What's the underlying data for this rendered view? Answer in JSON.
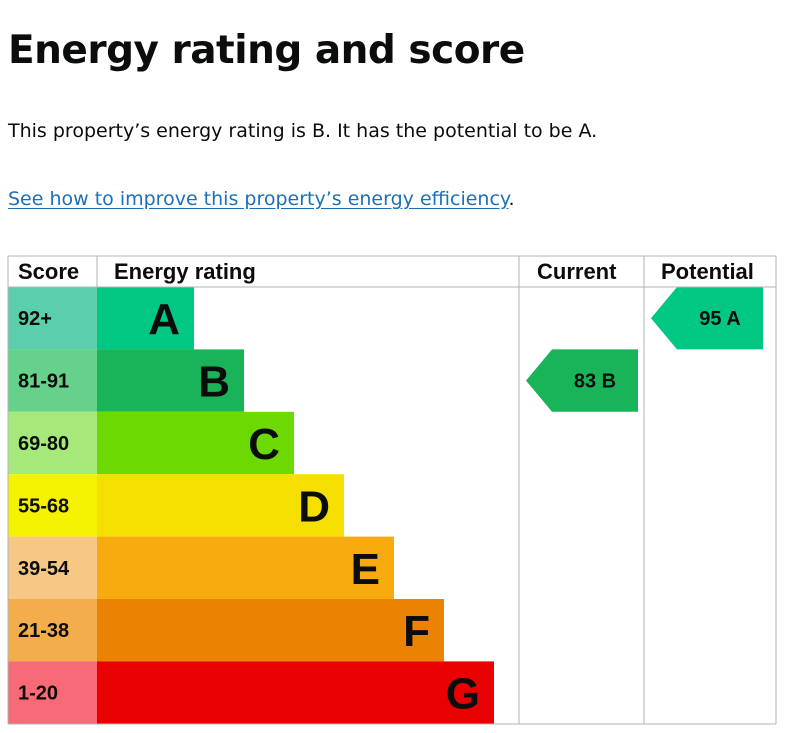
{
  "page": {
    "title": "Energy rating and score",
    "summary": "This property’s energy rating is B. It has the potential to be A.",
    "link_text": "See how to improve this property’s energy efficiency",
    "link_suffix": "."
  },
  "chart_data": {
    "type": "bar",
    "headers": {
      "score": "Score",
      "rating": "Energy rating",
      "current": "Current",
      "potential": "Potential"
    },
    "bands": [
      {
        "letter": "A",
        "score_range": "92+",
        "score_color": "#5bcfab",
        "bar_color": "#00c781",
        "rank": 1
      },
      {
        "letter": "B",
        "score_range": "81-91",
        "score_color": "#66d18a",
        "bar_color": "#19b459",
        "rank": 2
      },
      {
        "letter": "C",
        "score_range": "69-80",
        "score_color": "#a6e97a",
        "bar_color": "#6cd900",
        "rank": 3
      },
      {
        "letter": "D",
        "score_range": "55-68",
        "score_color": "#f5f200",
        "bar_color": "#f5df00",
        "rank": 4
      },
      {
        "letter": "E",
        "score_range": "39-54",
        "score_color": "#f7c785",
        "bar_color": "#f7ab0e",
        "rank": 5
      },
      {
        "letter": "F",
        "score_range": "21-38",
        "score_color": "#f3ad4d",
        "bar_color": "#ec8201",
        "rank": 6
      },
      {
        "letter": "G",
        "score_range": "1-20",
        "score_color": "#f86a75",
        "bar_color": "#e90000",
        "rank": 7
      }
    ],
    "current": {
      "score": 83,
      "band": "B",
      "label": "83  B",
      "color": "#19b459"
    },
    "potential": {
      "score": 95,
      "band": "A",
      "label": "95  A",
      "color": "#00c781"
    }
  }
}
